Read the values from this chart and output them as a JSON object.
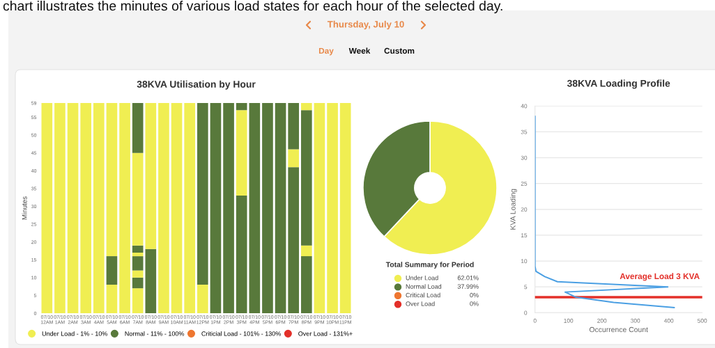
{
  "chart_data": [
    {
      "type": "other",
      "annotations": [
        "chart illustrates the minutes of various load states for each hour of the selected day.",
        "Thursday, July 10",
        "Day",
        "Week",
        "Custom"
      ]
    },
    {
      "type": "bar",
      "title": "38KVA Utilisation by Hour",
      "ylabel": "Minutes",
      "stacked": true,
      "legend": "bottom",
      "categories": [
        "07/10\n12AM",
        "07/10\n1AM",
        "07/10\n2AM",
        "07/10\n3AM",
        "07/10\n4AM",
        "07/10\n5AM",
        "07/10\n6AM",
        "07/10\n7AM",
        "07/10\n8AM",
        "07/10\n9AM",
        "07/10\n10AM",
        "07/10\n11AM",
        "07/10\n12PM",
        "07/10\n1PM",
        "07/10\n2PM",
        "07/10\n3PM",
        "07/10\n4PM",
        "07/10\n5PM",
        "07/10\n6PM",
        "07/10\n7PM",
        "07/10\n8PM",
        "07/10\n9PM",
        "07/10\n10PM",
        "07/10\n11PM"
      ],
      "ylim": [
        0,
        59
      ],
      "yticks": [
        0,
        5,
        10,
        15,
        20,
        25,
        30,
        35,
        40,
        45,
        50,
        55,
        59
      ],
      "series": [
        {
          "name": "Under Load - 1% - 10%",
          "color": "#f0ee52",
          "values": [
            59,
            59,
            59,
            59,
            59,
            8,
            59,
            7,
            null,
            59,
            59,
            59,
            8,
            null,
            null,
            null,
            null,
            null,
            null,
            null,
            null,
            59,
            59,
            59
          ]
        },
        {
          "name": "Normal - 11% - 100%",
          "color": "#58793b",
          "values": [
            null,
            null,
            null,
            null,
            null,
            8,
            null,
            3,
            18,
            null,
            null,
            null,
            51,
            59,
            59,
            33,
            59,
            59,
            59,
            41,
            16,
            null,
            null,
            null
          ]
        },
        {
          "color": "#f0ee52",
          "values": [
            null,
            null,
            null,
            null,
            null,
            43,
            null,
            2,
            41,
            null,
            null,
            null,
            null,
            null,
            null,
            24,
            null,
            null,
            null,
            5,
            3,
            null,
            null,
            null
          ]
        },
        {
          "color": "#58793b",
          "values": [
            null,
            null,
            null,
            null,
            null,
            null,
            null,
            4,
            null,
            null,
            null,
            null,
            null,
            null,
            null,
            2,
            null,
            null,
            null,
            13,
            38,
            null,
            null,
            null
          ]
        },
        {
          "color": "#f0ee52",
          "values": [
            null,
            null,
            null,
            null,
            null,
            null,
            null,
            1,
            null,
            null,
            null,
            null,
            null,
            null,
            null,
            null,
            null,
            null,
            null,
            null,
            2,
            null,
            null,
            null
          ]
        },
        {
          "color": "#58793b",
          "values": [
            null,
            null,
            null,
            null,
            null,
            null,
            null,
            2,
            null,
            null,
            null,
            null,
            null,
            null,
            null,
            null,
            null,
            null,
            null,
            null,
            null,
            null,
            null,
            null
          ]
        },
        {
          "color": "#f0ee52",
          "values": [
            null,
            null,
            null,
            null,
            null,
            null,
            null,
            26,
            null,
            null,
            null,
            null,
            null,
            null,
            null,
            null,
            null,
            null,
            null,
            null,
            null,
            null,
            null,
            null
          ]
        },
        {
          "color": "#58793b",
          "values": [
            null,
            null,
            null,
            null,
            null,
            null,
            null,
            14,
            null,
            null,
            null,
            null,
            null,
            null,
            null,
            null,
            null,
            null,
            null,
            null,
            null,
            null,
            null,
            null
          ]
        },
        {
          "name": "Criticial Load - 101% - 130%",
          "color": "#ee7630",
          "values": [
            null,
            null,
            null,
            null,
            null,
            null,
            null,
            null,
            null,
            null,
            null,
            null,
            null,
            null,
            null,
            null,
            null,
            null,
            null,
            null,
            null,
            null,
            null,
            null
          ]
        },
        {
          "name": "Over Load - 131%+",
          "color": "#e3302a",
          "values": [
            null,
            null,
            null,
            null,
            null,
            null,
            null,
            null,
            null,
            null,
            null,
            null,
            null,
            null,
            null,
            null,
            null,
            null,
            null,
            null,
            null,
            null,
            null,
            null
          ]
        }
      ]
    },
    {
      "type": "donut",
      "legend_title": "Total Summary for Period",
      "legend": "bottom",
      "categories": [
        "Under Load",
        "Normal Load",
        "Critical Load",
        "Over Load"
      ],
      "values": [
        62.01,
        37.99,
        0,
        0
      ],
      "value_labels": [
        "62.01%",
        "37.99%",
        "0%",
        "0%"
      ],
      "colors": [
        "#f0ee52",
        "#58793b",
        "#ee7630",
        "#e3302a"
      ]
    },
    {
      "type": "line",
      "title": "38KVA Loading Profile",
      "xlabel": "Occurrence Count",
      "ylabel": "KVA Loading",
      "grid": "y",
      "xlim": [
        0,
        500
      ],
      "xticks": [
        0,
        100,
        200,
        300,
        400,
        500
      ],
      "ylim": [
        0,
        40
      ],
      "yticks": [
        0,
        5,
        10,
        15,
        20,
        25,
        30,
        35,
        40
      ],
      "series": [
        {
          "color": "#4a9fe3",
          "x": [
            0,
            0,
            3,
            29,
            67,
            397,
            90,
            123,
            235,
            416
          ],
          "values": [
            38,
            9,
            8,
            7,
            6,
            5,
            4,
            3,
            2,
            1
          ]
        }
      ],
      "ref_lines": [
        {
          "axis": "y",
          "value": 3,
          "label": "Average Load 3 KVA",
          "color": "#e3302a"
        }
      ]
    }
  ]
}
